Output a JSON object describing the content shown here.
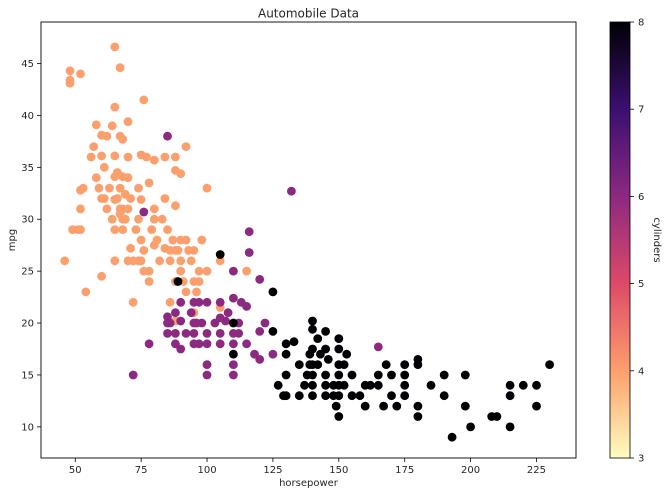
{
  "chart_data": {
    "type": "scatter",
    "title": "Automobile Data",
    "xlabel": "horsepower",
    "ylabel": "mpg",
    "xlim": [
      37,
      240
    ],
    "ylim": [
      7,
      49
    ],
    "xticks": [
      50,
      75,
      100,
      125,
      150,
      175,
      200,
      225
    ],
    "yticks": [
      10,
      15,
      20,
      25,
      30,
      35,
      40,
      45
    ],
    "grid": false,
    "colorbar": {
      "label": "cylinders",
      "range": [
        3,
        8
      ],
      "ticks": [
        3,
        4,
        5,
        6,
        7,
        8
      ],
      "colormap": "magma",
      "colors": [
        "#fcfdbf",
        "#fe9f6d",
        "#de4968",
        "#8c2981",
        "#3b0f70",
        "#000004"
      ],
      "orientation": "vertical",
      "placement": "right"
    },
    "point_color_by": "cylinders",
    "series": [
      {
        "cylinders": 4,
        "color": "#fb9f6d",
        "points": [
          [
            46,
            26
          ],
          [
            48,
            43.1
          ],
          [
            48,
            43.4
          ],
          [
            48,
            44.3
          ],
          [
            52,
            44
          ],
          [
            52,
            32.8
          ],
          [
            52,
            31
          ],
          [
            52,
            29
          ],
          [
            53,
            33
          ],
          [
            54,
            23
          ],
          [
            58,
            39.1
          ],
          [
            60,
            38.1
          ],
          [
            60,
            36.1
          ],
          [
            60,
            32
          ],
          [
            61,
            32
          ],
          [
            62,
            38
          ],
          [
            64,
            39
          ],
          [
            65,
            46.6
          ],
          [
            65,
            40.8
          ],
          [
            65,
            36.1
          ],
          [
            65,
            34.1
          ],
          [
            65,
            31.9
          ],
          [
            65,
            29
          ],
          [
            65,
            26
          ],
          [
            66,
            34.5
          ],
          [
            67,
            44.6
          ],
          [
            67,
            38
          ],
          [
            67,
            33
          ],
          [
            67,
            31
          ],
          [
            67,
            30.5
          ],
          [
            68,
            37.7
          ],
          [
            68,
            34.1
          ],
          [
            68,
            31
          ],
          [
            68,
            30
          ],
          [
            68,
            29
          ],
          [
            69,
            32.4
          ],
          [
            70,
            39.4
          ],
          [
            70,
            36
          ],
          [
            70,
            31
          ],
          [
            70,
            26
          ],
          [
            71,
            27.2
          ],
          [
            72,
            26
          ],
          [
            72,
            22
          ],
          [
            74,
            33
          ],
          [
            74,
            26
          ],
          [
            75,
            36.2
          ],
          [
            75,
            31.9
          ],
          [
            75,
            26
          ],
          [
            76,
            41.5
          ],
          [
            76,
            27
          ],
          [
            77,
            36
          ],
          [
            78,
            33.5
          ],
          [
            78,
            25
          ],
          [
            78,
            24
          ],
          [
            80,
            35.7
          ],
          [
            80,
            30
          ],
          [
            80,
            27.5
          ],
          [
            84,
            36
          ],
          [
            84,
            32
          ],
          [
            84,
            27.2
          ],
          [
            86,
            27
          ],
          [
            86,
            26
          ],
          [
            88,
            36
          ],
          [
            88,
            34.7
          ],
          [
            88,
            31.3
          ],
          [
            88,
            27
          ],
          [
            88,
            24
          ],
          [
            88,
            20.2
          ],
          [
            90,
            34.4
          ],
          [
            90,
            28
          ],
          [
            90,
            26
          ],
          [
            90,
            22
          ],
          [
            92,
            37
          ],
          [
            92,
            28
          ],
          [
            92,
            23
          ],
          [
            95,
            27
          ],
          [
            95,
            24
          ],
          [
            95,
            21
          ],
          [
            97,
            25
          ],
          [
            97,
            24
          ],
          [
            98,
            28
          ],
          [
            100,
            33
          ],
          [
            100,
            25
          ],
          [
            105,
            26
          ],
          [
            105,
            21.5
          ],
          [
            110,
            20
          ],
          [
            115,
            25
          ],
          [
            49,
            29
          ],
          [
            51,
            29
          ],
          [
            56,
            36
          ],
          [
            57,
            37
          ],
          [
            58,
            34
          ],
          [
            59,
            33
          ],
          [
            60,
            24.5
          ],
          [
            61,
            35
          ],
          [
            62,
            31
          ],
          [
            63,
            33
          ],
          [
            66,
            32
          ],
          [
            69,
            30
          ],
          [
            70,
            34
          ],
          [
            71,
            32
          ],
          [
            73,
            29
          ],
          [
            74,
            30
          ],
          [
            75,
            28
          ],
          [
            76,
            25
          ],
          [
            79,
            29
          ],
          [
            80,
            31
          ],
          [
            81,
            28
          ],
          [
            82,
            26
          ],
          [
            83,
            30
          ],
          [
            85,
            29
          ],
          [
            86,
            22
          ],
          [
            87,
            28
          ],
          [
            89,
            27
          ],
          [
            90,
            25
          ],
          [
            91,
            24
          ],
          [
            93,
            27
          ],
          [
            94,
            26
          ],
          [
            96,
            23
          ],
          [
            64,
            30
          ]
        ]
      },
      {
        "cylinders": 6,
        "color": "#8c2981",
        "points": [
          [
            72,
            15
          ],
          [
            76,
            30.7
          ],
          [
            78,
            18
          ],
          [
            85,
            38
          ],
          [
            85,
            20.6
          ],
          [
            85,
            20
          ],
          [
            85,
            19
          ],
          [
            88,
            21
          ],
          [
            88,
            19
          ],
          [
            90,
            22
          ],
          [
            90,
            20.2
          ],
          [
            90,
            17.5
          ],
          [
            95,
            22
          ],
          [
            95,
            20
          ],
          [
            95,
            19
          ],
          [
            95,
            18
          ],
          [
            97,
            22
          ],
          [
            97,
            18
          ],
          [
            98,
            20
          ],
          [
            100,
            22
          ],
          [
            100,
            19
          ],
          [
            100,
            18
          ],
          [
            100,
            16
          ],
          [
            100,
            15
          ],
          [
            105,
            22
          ],
          [
            105,
            20.5
          ],
          [
            105,
            19
          ],
          [
            105,
            18
          ],
          [
            110,
            25
          ],
          [
            110,
            22.4
          ],
          [
            110,
            19
          ],
          [
            110,
            18
          ],
          [
            110,
            16
          ],
          [
            110,
            15
          ],
          [
            112,
            20
          ],
          [
            112,
            19
          ],
          [
            115,
            21.6
          ],
          [
            115,
            18
          ],
          [
            116,
            28.8
          ],
          [
            116,
            26.8
          ],
          [
            120,
            24.2
          ],
          [
            120,
            19.2
          ],
          [
            120,
            16.5
          ],
          [
            122,
            20
          ],
          [
            125,
            17
          ],
          [
            132,
            32.7
          ],
          [
            165,
            17.7
          ],
          [
            88,
            18
          ],
          [
            92,
            19
          ],
          [
            94,
            21
          ],
          [
            96,
            20
          ],
          [
            103,
            20
          ],
          [
            108,
            21
          ],
          [
            113,
            22
          ],
          [
            118,
            17
          ],
          [
            86,
            20
          ],
          [
            107,
            20.2
          ]
        ]
      },
      {
        "cylinders": 8,
        "color": "#000004",
        "points": [
          [
            105,
            26.6
          ],
          [
            110,
            17
          ],
          [
            125,
            23
          ],
          [
            125,
            19.2
          ],
          [
            129,
            13
          ],
          [
            130,
            18
          ],
          [
            130,
            17
          ],
          [
            130,
            15
          ],
          [
            130,
            13
          ],
          [
            133,
            18.2
          ],
          [
            135,
            16
          ],
          [
            137,
            14
          ],
          [
            139,
            17
          ],
          [
            139,
            16
          ],
          [
            140,
            20.2
          ],
          [
            140,
            19.4
          ],
          [
            140,
            17.5
          ],
          [
            140,
            16
          ],
          [
            140,
            15
          ],
          [
            140,
            14
          ],
          [
            140,
            13
          ],
          [
            142,
            18.5
          ],
          [
            142,
            16
          ],
          [
            145,
            19.2
          ],
          [
            145,
            17.5
          ],
          [
            145,
            15
          ],
          [
            145,
            14
          ],
          [
            145,
            13
          ],
          [
            146,
            16.5
          ],
          [
            148,
            14
          ],
          [
            148,
            13
          ],
          [
            150,
            18.5
          ],
          [
            150,
            17.5
          ],
          [
            150,
            16
          ],
          [
            150,
            15
          ],
          [
            150,
            14
          ],
          [
            150,
            13
          ],
          [
            150,
            11
          ],
          [
            152,
            16
          ],
          [
            152,
            14
          ],
          [
            153,
            17
          ],
          [
            155,
            13
          ],
          [
            158,
            13
          ],
          [
            160,
            14
          ],
          [
            160,
            12
          ],
          [
            165,
            15
          ],
          [
            165,
            14
          ],
          [
            167,
            12
          ],
          [
            170,
            13
          ],
          [
            170,
            15
          ],
          [
            175,
            16
          ],
          [
            175,
            15
          ],
          [
            175,
            14
          ],
          [
            175,
            13
          ],
          [
            180,
            16.5
          ],
          [
            180,
            16
          ],
          [
            180,
            12
          ],
          [
            180,
            11
          ],
          [
            190,
            15
          ],
          [
            190,
            13
          ],
          [
            193,
            9
          ],
          [
            198,
            15
          ],
          [
            198,
            12
          ],
          [
            200,
            10
          ],
          [
            208,
            11
          ],
          [
            210,
            11
          ],
          [
            215,
            14
          ],
          [
            215,
            13
          ],
          [
            215,
            10
          ],
          [
            220,
            14
          ],
          [
            225,
            14
          ],
          [
            225,
            12
          ],
          [
            230,
            16
          ],
          [
            127,
            14
          ],
          [
            135,
            13
          ],
          [
            138,
            15
          ],
          [
            143,
            17
          ],
          [
            149,
            12
          ],
          [
            155,
            15
          ],
          [
            162,
            14
          ],
          [
            168,
            16
          ],
          [
            172,
            12
          ],
          [
            185,
            14
          ],
          [
            110,
            20
          ],
          [
            89,
            24
          ]
        ]
      }
    ]
  }
}
